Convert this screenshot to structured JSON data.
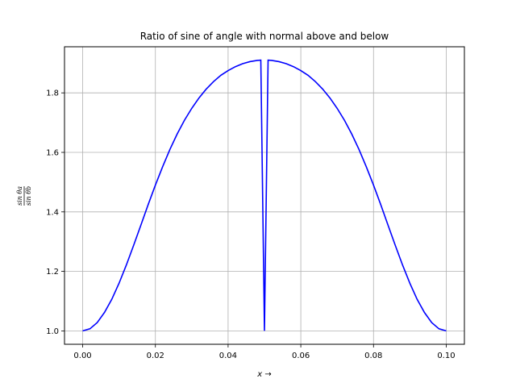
{
  "chart_data": {
    "type": "line",
    "title": "Ratio of sine of angle with normal above and below",
    "xlabel": "x →",
    "ylabel": {
      "numerator": "sin θa",
      "denominator": "sin θb"
    },
    "xlim": [
      -0.005,
      0.105
    ],
    "ylim": [
      0.955,
      1.955
    ],
    "xticks": [
      0.0,
      0.02,
      0.04,
      0.06,
      0.08,
      0.1
    ],
    "xtick_labels": [
      "0.00",
      "0.02",
      "0.04",
      "0.06",
      "0.08",
      "0.10"
    ],
    "yticks": [
      1.0,
      1.2,
      1.4,
      1.6,
      1.8
    ],
    "ytick_labels": [
      "1.0",
      "1.2",
      "1.4",
      "1.6",
      "1.8"
    ],
    "grid": true,
    "legend": "none",
    "series": [
      {
        "color": "#0000ff",
        "x": [
          0.0,
          0.002,
          0.004,
          0.006,
          0.008,
          0.01,
          0.012,
          0.014,
          0.016,
          0.018,
          0.02,
          0.022,
          0.024,
          0.026,
          0.028,
          0.03,
          0.032,
          0.034,
          0.036,
          0.038,
          0.04,
          0.042,
          0.044,
          0.046,
          0.048,
          0.049,
          0.05,
          0.051,
          0.052,
          0.054,
          0.056,
          0.058,
          0.06,
          0.062,
          0.064,
          0.066,
          0.068,
          0.07,
          0.072,
          0.074,
          0.076,
          0.078,
          0.08,
          0.082,
          0.084,
          0.086,
          0.088,
          0.09,
          0.092,
          0.094,
          0.096,
          0.098,
          0.1
        ],
        "y": [
          1.0,
          1.007,
          1.028,
          1.062,
          1.106,
          1.16,
          1.221,
          1.287,
          1.355,
          1.424,
          1.49,
          1.552,
          1.61,
          1.662,
          1.708,
          1.748,
          1.783,
          1.813,
          1.838,
          1.859,
          1.875,
          1.888,
          1.898,
          1.905,
          1.909,
          1.91,
          1.0,
          1.91,
          1.909,
          1.905,
          1.898,
          1.888,
          1.875,
          1.859,
          1.838,
          1.813,
          1.783,
          1.748,
          1.708,
          1.662,
          1.61,
          1.552,
          1.49,
          1.424,
          1.355,
          1.287,
          1.221,
          1.16,
          1.106,
          1.062,
          1.028,
          1.007,
          1.0
        ]
      }
    ]
  }
}
